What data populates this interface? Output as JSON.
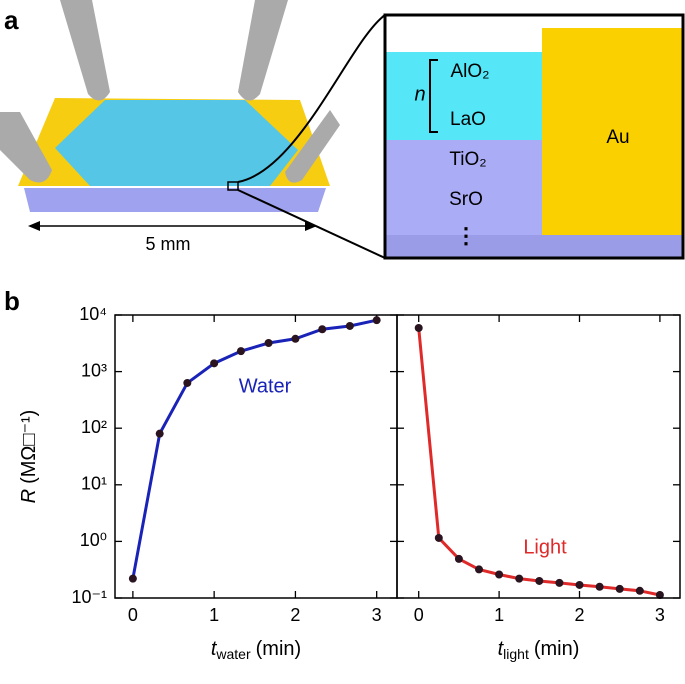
{
  "panels": [
    "a",
    "b"
  ],
  "diagram": {
    "scale_label": "5 mm",
    "repeat_label": "n",
    "layers": [
      "AlO₂",
      "LaO",
      "TiO₂",
      "SrO",
      "⋮"
    ],
    "electrode": "Au"
  },
  "chart_data": [
    {
      "type": "line",
      "log_y": true,
      "xlabel": {
        "symbol": "t",
        "subscript": "water",
        "unit": "(min)"
      },
      "ylabel": {
        "symbol": "R",
        "unit": "(MΩ□⁻¹)"
      },
      "annotation": "Water",
      "x": [
        0,
        0.33,
        0.67,
        1,
        1.33,
        1.67,
        2,
        2.33,
        2.67,
        3
      ],
      "series": [
        {
          "color": "#1a23b8",
          "values": [
            0.22,
            80,
            630,
            1400,
            2300,
            3200,
            3800,
            5600,
            6400,
            8100
          ]
        }
      ],
      "xlim": [
        -0.22,
        3.25
      ],
      "xticks": [
        0,
        1,
        2,
        3
      ],
      "ylim": [
        0.1,
        10000
      ],
      "yticks": [
        {
          "value": 0.1,
          "label": "10⁻¹"
        },
        {
          "value": 1,
          "label": "10⁰"
        },
        {
          "value": 10,
          "label": "10¹"
        },
        {
          "value": 100,
          "label": "10²"
        },
        {
          "value": 1000,
          "label": "10³"
        },
        {
          "value": 10000,
          "label": "10⁴"
        }
      ]
    },
    {
      "type": "line",
      "log_y": true,
      "xlabel": {
        "symbol": "t",
        "subscript": "light",
        "unit": "(min)"
      },
      "annotation": "Light",
      "x": [
        0,
        0.25,
        0.5,
        0.75,
        1,
        1.25,
        1.5,
        1.75,
        2,
        2.25,
        2.5,
        2.75,
        3
      ],
      "series": [
        {
          "color": "#e02a2a",
          "values": [
            5900,
            1.15,
            0.49,
            0.32,
            0.26,
            0.22,
            0.2,
            0.185,
            0.17,
            0.158,
            0.145,
            0.134,
            0.113
          ]
        }
      ],
      "xlim": [
        -0.27,
        3.25
      ],
      "xticks": [
        0,
        1,
        2,
        3
      ],
      "ylim": [
        0.1,
        10000
      ],
      "yticks": [
        0.1,
        1,
        10,
        100,
        1000,
        10000
      ]
    }
  ]
}
